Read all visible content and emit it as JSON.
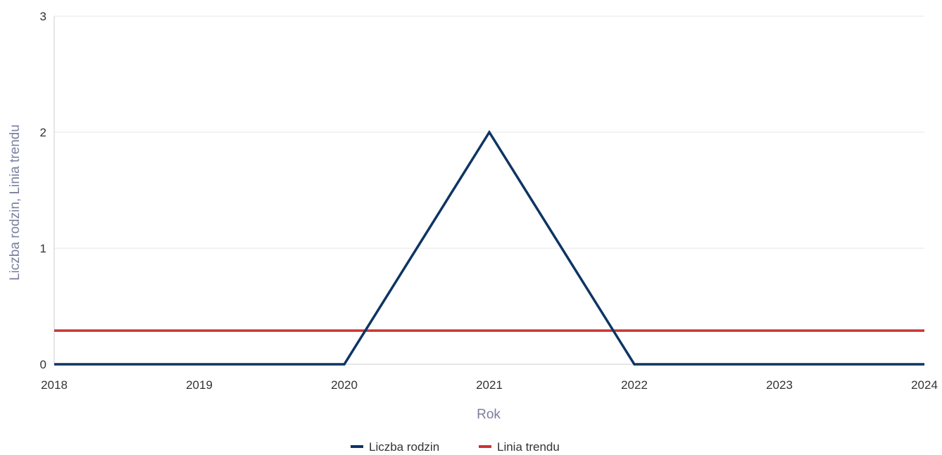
{
  "chart_data": {
    "type": "line",
    "title": "",
    "xlabel": "Rok",
    "ylabel": "Liczba rodzin, Linia trendu",
    "x": [
      2018,
      2019,
      2020,
      2021,
      2022,
      2023,
      2024
    ],
    "xlim": [
      2018,
      2024
    ],
    "ylim": [
      0,
      3
    ],
    "yticks": [
      0,
      1,
      2,
      3
    ],
    "grid": true,
    "legend_position": "bottom-center",
    "series": [
      {
        "name": "Liczba rodzin",
        "color": "#0d3563",
        "values": [
          0,
          0,
          0,
          2,
          0,
          0,
          0
        ]
      },
      {
        "name": "Linia trendu",
        "color": "#cc3333",
        "values": [
          0.29,
          0.29,
          0.29,
          0.29,
          0.29,
          0.29,
          0.29
        ]
      }
    ]
  }
}
